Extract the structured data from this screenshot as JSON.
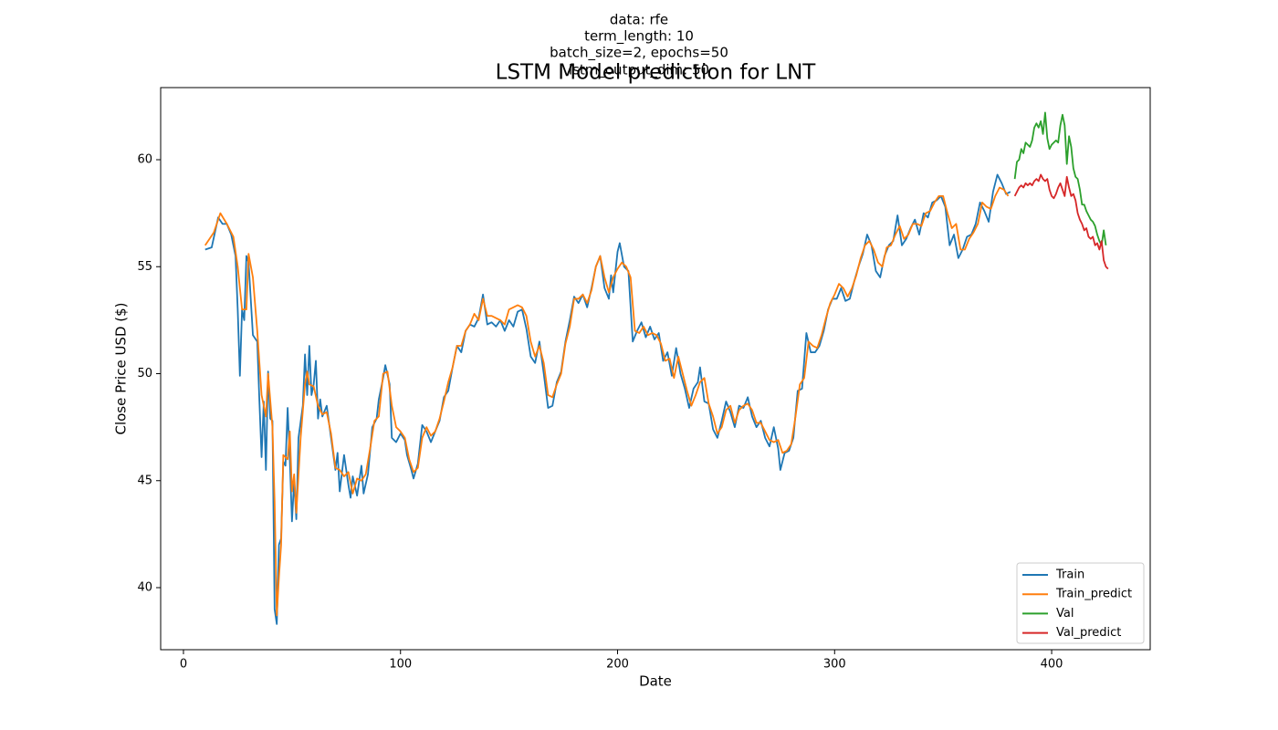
{
  "chart_data": {
    "type": "line",
    "suptitle": [
      "data: rfe",
      "term_length: 10",
      "batch_size=2, epochs=50",
      "lstm_output_dim: 50"
    ],
    "title": "LSTM Model prediction for LNT",
    "x_label": "Date",
    "y_label": "Close Price USD ($)",
    "xlim": [
      -10.5,
      445.4
    ],
    "ylim": [
      37.1,
      63.37
    ],
    "xticks": [
      0,
      100,
      200,
      300,
      400
    ],
    "yticks": [
      40,
      45,
      50,
      55,
      60
    ],
    "legend": "lower right",
    "series": [
      {
        "name": "Train",
        "color": "#1f77b4",
        "x": [
          10,
          13,
          16,
          18,
          20,
          22,
          24,
          25,
          26,
          27,
          28,
          29,
          30,
          32,
          34,
          35,
          36,
          37,
          38,
          39,
          40,
          41,
          42,
          43,
          44,
          45,
          46,
          47,
          48,
          49,
          50,
          51,
          52,
          53,
          55,
          56,
          57,
          58,
          59,
          60,
          61,
          62,
          63,
          64,
          66,
          68,
          70,
          71,
          72,
          74,
          76,
          77,
          78,
          80,
          82,
          83,
          85,
          87,
          89,
          90,
          92,
          93,
          95,
          96,
          98,
          100,
          102,
          103,
          105,
          106,
          108,
          110,
          112,
          114,
          116,
          118,
          120,
          122,
          124,
          126,
          128,
          130,
          132,
          134,
          136,
          138,
          140,
          142,
          144,
          146,
          148,
          150,
          152,
          154,
          156,
          158,
          160,
          162,
          164,
          166,
          168,
          170,
          172,
          174,
          176,
          178,
          180,
          182,
          184,
          186,
          188,
          190,
          192,
          194,
          196,
          197,
          198,
          200,
          201,
          203,
          205,
          207,
          209,
          211,
          213,
          215,
          217,
          219,
          221,
          223,
          225,
          227,
          229,
          231,
          233,
          235,
          237,
          238,
          240,
          242,
          244,
          246,
          248,
          250,
          252,
          254,
          256,
          258,
          260,
          262,
          264,
          266,
          268,
          270,
          272,
          274,
          275,
          277,
          279,
          281,
          283,
          285,
          287,
          289,
          291,
          293,
          295,
          297,
          299,
          301,
          303,
          305,
          307,
          309,
          311,
          313,
          315,
          317,
          319,
          321,
          323,
          325,
          327,
          329,
          331,
          333,
          335,
          337,
          339,
          341,
          343,
          345,
          347,
          349,
          351,
          353,
          355,
          357,
          359,
          361,
          363,
          365,
          367,
          369,
          371,
          373,
          375,
          377,
          379,
          381
        ],
        "values": [
          55.8,
          55.9,
          57.3,
          57.0,
          57.0,
          56.5,
          55.5,
          53.0,
          49.9,
          53.0,
          52.5,
          55.5,
          55.2,
          51.8,
          51.5,
          48.7,
          46.1,
          48.7,
          45.5,
          50.1,
          47.9,
          47.8,
          39.0,
          38.3,
          42.0,
          42.3,
          45.9,
          45.7,
          48.4,
          46.0,
          43.1,
          45.0,
          43.2,
          47.0,
          48.5,
          50.9,
          49.0,
          51.3,
          49.0,
          49.5,
          50.6,
          47.9,
          48.8,
          48.0,
          48.5,
          47.0,
          45.5,
          46.3,
          44.5,
          46.2,
          44.8,
          44.2,
          45.2,
          44.3,
          45.7,
          44.4,
          45.3,
          47.5,
          47.9,
          48.8,
          49.8,
          50.4,
          49.5,
          47.0,
          46.8,
          47.2,
          46.9,
          46.2,
          45.5,
          45.1,
          45.8,
          47.6,
          47.3,
          46.8,
          47.3,
          47.8,
          48.9,
          49.2,
          50.3,
          51.3,
          51.0,
          52.0,
          52.3,
          52.2,
          52.6,
          53.7,
          52.3,
          52.4,
          52.2,
          52.5,
          52.0,
          52.5,
          52.2,
          52.9,
          53.0,
          52.1,
          50.8,
          50.5,
          51.5,
          50.0,
          48.4,
          48.5,
          49.6,
          50.1,
          51.5,
          52.5,
          53.6,
          53.3,
          53.7,
          53.1,
          54.0,
          55.0,
          55.5,
          54.0,
          53.5,
          54.6,
          53.8,
          55.7,
          56.1,
          55.0,
          54.8,
          51.5,
          52.0,
          52.4,
          51.7,
          52.2,
          51.6,
          51.9,
          50.6,
          51.0,
          49.9,
          51.2,
          50.0,
          49.3,
          48.4,
          49.3,
          49.6,
          50.3,
          48.7,
          48.6,
          47.4,
          47.0,
          47.8,
          48.7,
          48.2,
          47.5,
          48.5,
          48.4,
          48.9,
          48.0,
          47.5,
          47.8,
          47.0,
          46.6,
          47.5,
          46.5,
          45.5,
          46.3,
          46.4,
          47.0,
          49.2,
          49.3,
          51.9,
          51.0,
          51.0,
          51.3,
          52.0,
          53.0,
          53.5,
          53.5,
          54.0,
          53.4,
          53.5,
          54.3,
          55.0,
          55.6,
          56.5,
          56.0,
          54.8,
          54.5,
          55.5,
          56.0,
          56.2,
          57.4,
          56.0,
          56.3,
          56.8,
          57.2,
          56.5,
          57.5,
          57.3,
          58.0,
          58.1,
          58.3,
          57.8,
          56.0,
          56.5,
          55.4,
          55.8,
          56.4,
          56.5,
          57.0,
          58.0,
          57.6,
          57.1,
          58.5,
          59.3,
          58.9,
          58.4,
          58.5
        ]
      },
      {
        "name": "Train_predict",
        "color": "#ff7f0e",
        "x": [
          10,
          14,
          17,
          20,
          23,
          25,
          27,
          29,
          30,
          32,
          34,
          36,
          38,
          39,
          41,
          42,
          43,
          44,
          45,
          46,
          48,
          49,
          50,
          51,
          52,
          54,
          56,
          57,
          58,
          60,
          62,
          64,
          66,
          68,
          70,
          72,
          74,
          76,
          78,
          80,
          82,
          84,
          86,
          88,
          90,
          92,
          94,
          96,
          98,
          100,
          102,
          104,
          106,
          108,
          110,
          112,
          114,
          116,
          118,
          120,
          122,
          124,
          126,
          128,
          130,
          132,
          134,
          136,
          138,
          140,
          142,
          144,
          146,
          148,
          150,
          152,
          154,
          156,
          158,
          160,
          162,
          164,
          166,
          168,
          170,
          172,
          174,
          176,
          178,
          180,
          182,
          184,
          186,
          188,
          190,
          192,
          194,
          196,
          198,
          200,
          202,
          204,
          206,
          208,
          210,
          212,
          214,
          216,
          218,
          220,
          222,
          224,
          226,
          228,
          230,
          232,
          234,
          236,
          238,
          240,
          242,
          244,
          246,
          248,
          250,
          252,
          254,
          256,
          258,
          260,
          262,
          264,
          266,
          268,
          270,
          272,
          274,
          276,
          278,
          280,
          282,
          284,
          286,
          288,
          290,
          292,
          294,
          296,
          298,
          300,
          302,
          304,
          306,
          308,
          310,
          312,
          314,
          316,
          318,
          320,
          322,
          324,
          326,
          328,
          330,
          332,
          334,
          336,
          338,
          340,
          342,
          344,
          346,
          348,
          350,
          352,
          354,
          356,
          358,
          360,
          362,
          364,
          366,
          368,
          370,
          372,
          374,
          376,
          378,
          380
        ],
        "values": [
          56.0,
          56.6,
          57.5,
          57.0,
          56.4,
          55.0,
          53.0,
          53.0,
          55.6,
          54.5,
          52.0,
          49.0,
          48.0,
          50.0,
          47.5,
          44.0,
          38.7,
          40.5,
          42.0,
          46.2,
          46.0,
          47.3,
          44.5,
          45.3,
          43.5,
          47.0,
          49.5,
          50.1,
          49.5,
          49.4,
          48.5,
          48.1,
          48.2,
          47.2,
          45.6,
          45.5,
          45.2,
          45.4,
          44.4,
          45.1,
          45.0,
          45.3,
          46.5,
          47.8,
          48.0,
          50.0,
          50.1,
          48.5,
          47.5,
          47.3,
          47.0,
          46.0,
          45.4,
          45.6,
          47.0,
          47.5,
          47.1,
          47.3,
          47.9,
          48.7,
          49.6,
          50.3,
          51.3,
          51.3,
          52.0,
          52.3,
          52.8,
          52.5,
          53.5,
          52.7,
          52.7,
          52.6,
          52.5,
          52.3,
          53.0,
          53.1,
          53.2,
          53.1,
          52.7,
          51.5,
          50.8,
          51.3,
          50.5,
          49.0,
          48.9,
          49.5,
          50.0,
          51.4,
          52.2,
          53.5,
          53.5,
          53.7,
          53.3,
          53.9,
          55.0,
          55.5,
          54.5,
          53.8,
          54.5,
          54.9,
          55.2,
          55.0,
          54.5,
          52.0,
          51.9,
          52.2,
          51.8,
          51.9,
          51.8,
          51.4,
          50.6,
          50.7,
          49.8,
          50.8,
          50.0,
          49.2,
          48.5,
          49.0,
          49.6,
          49.8,
          48.6,
          48.0,
          47.2,
          47.5,
          48.3,
          48.5,
          47.7,
          48.3,
          48.5,
          48.6,
          48.3,
          47.7,
          47.7,
          47.3,
          46.9,
          46.8,
          46.9,
          46.3,
          46.4,
          46.7,
          48.0,
          49.5,
          49.8,
          51.5,
          51.3,
          51.2,
          51.8,
          52.6,
          53.3,
          53.7,
          54.2,
          54.0,
          53.6,
          54.0,
          54.6,
          55.4,
          56.0,
          56.2,
          55.8,
          55.2,
          55.0,
          55.9,
          56.0,
          56.5,
          56.9,
          56.3,
          56.5,
          57.0,
          57.0,
          56.9,
          57.5,
          57.6,
          58.0,
          58.3,
          58.3,
          57.5,
          56.8,
          57.0,
          55.8,
          55.8,
          56.3,
          56.6,
          57.0,
          58.0,
          57.8,
          57.7,
          58.3,
          58.7,
          58.6,
          58.3
        ]
      },
      {
        "name": "Val",
        "color": "#2ca02c",
        "x": [
          383,
          384,
          385,
          386,
          387,
          388,
          389,
          390,
          391,
          392,
          393,
          394,
          395,
          396,
          397,
          398,
          399,
          400,
          401,
          402,
          403,
          404,
          405,
          406,
          407,
          408,
          409,
          410,
          411,
          412,
          413,
          414,
          415,
          416,
          417,
          418,
          419,
          420,
          421,
          422,
          423,
          424,
          425
        ],
        "values": [
          59.1,
          59.9,
          60.0,
          60.5,
          60.3,
          60.8,
          60.7,
          60.6,
          60.9,
          61.5,
          61.7,
          61.5,
          61.8,
          61.2,
          62.2,
          61.0,
          60.5,
          60.7,
          60.8,
          60.9,
          60.8,
          61.6,
          62.1,
          61.6,
          59.8,
          61.1,
          60.6,
          59.6,
          59.2,
          59.1,
          58.6,
          57.9,
          57.9,
          57.6,
          57.4,
          57.2,
          57.1,
          56.9,
          56.5,
          56.2,
          56.0,
          56.7,
          56.0
        ]
      },
      {
        "name": "Val_predict",
        "color": "#d62728",
        "x": [
          383,
          384,
          385,
          386,
          387,
          388,
          389,
          390,
          391,
          392,
          393,
          394,
          395,
          396,
          397,
          398,
          399,
          400,
          401,
          402,
          403,
          404,
          405,
          406,
          407,
          408,
          409,
          410,
          411,
          412,
          413,
          414,
          415,
          416,
          417,
          418,
          419,
          420,
          421,
          422,
          423,
          424,
          425,
          426
        ],
        "values": [
          58.3,
          58.5,
          58.7,
          58.8,
          58.7,
          58.9,
          58.8,
          58.9,
          58.8,
          59.0,
          59.1,
          59.0,
          59.3,
          59.1,
          59.0,
          59.1,
          58.6,
          58.3,
          58.2,
          58.4,
          58.7,
          58.9,
          58.6,
          58.3,
          59.2,
          58.7,
          58.3,
          58.4,
          58.1,
          57.5,
          57.2,
          57.0,
          56.7,
          56.8,
          56.4,
          56.3,
          56.4,
          56.0,
          56.1,
          55.8,
          56.2,
          55.3,
          55.0,
          54.9
        ]
      }
    ]
  }
}
